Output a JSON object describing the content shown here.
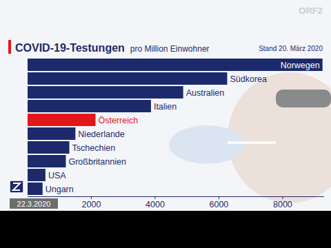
{
  "chart_data": {
    "type": "bar",
    "orientation": "horizontal",
    "title": "COVID-19-Testungen",
    "subtitle": "pro Million Einwohner",
    "annotations": [
      "Stand 20. März 2020",
      "22.3.2020",
      "ORF2"
    ],
    "categories": [
      "Norwegen",
      "Südkorea",
      "Australien",
      "Italien",
      "Österreich",
      "Niederlande",
      "Tschechien",
      "Großbritannien",
      "USA",
      "Ungarn"
    ],
    "values": [
      9250,
      6260,
      4880,
      3870,
      2130,
      1500,
      1310,
      1200,
      560,
      470
    ],
    "colors": [
      "#1c2a6b",
      "#1c2a6b",
      "#1c2a6b",
      "#1c2a6b",
      "#e3161b",
      "#1c2a6b",
      "#1c2a6b",
      "#1c2a6b",
      "#1c2a6b",
      "#1c2a6b"
    ],
    "xlim": [
      0,
      9300
    ],
    "xticks": [
      2000,
      4000,
      6000,
      8000
    ],
    "grid": false
  }
}
